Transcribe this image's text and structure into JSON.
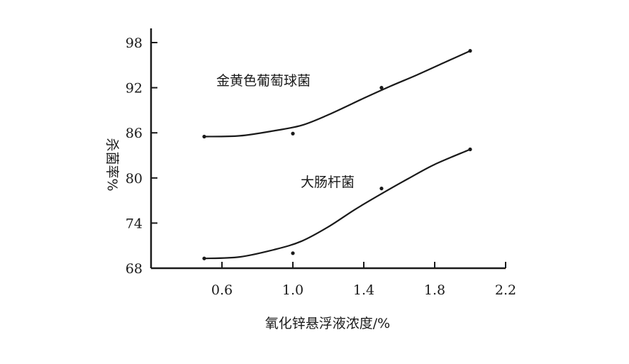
{
  "chart_data": {
    "type": "line",
    "xlabel": "氧化锌悬浮液浓度/%",
    "ylabel": "杀菌率%",
    "xlim": [
      0.2,
      2.2
    ],
    "ylim": [
      68,
      98
    ],
    "xticks": [
      "0.6",
      "1.0",
      "1.4",
      "1.8",
      "2.2"
    ],
    "yticks": [
      "68",
      "74",
      "80",
      "86",
      "92",
      "98"
    ],
    "grid": false,
    "series": [
      {
        "name": "金黄色葡萄球菌",
        "points_x": [
          0.5,
          1.0,
          1.5,
          2.0
        ],
        "points_y": [
          85.5,
          85.9,
          92.0,
          96.9
        ],
        "curve_x": [
          0.5,
          0.7,
          0.9,
          1.05,
          1.2,
          1.4,
          1.55,
          1.7,
          1.85,
          2.0
        ],
        "curve_y": [
          85.5,
          85.6,
          86.3,
          87.0,
          88.4,
          90.6,
          92.2,
          93.7,
          95.3,
          96.9
        ]
      },
      {
        "name": "大肠杆菌",
        "points_x": [
          0.5,
          1.0,
          1.5,
          2.0
        ],
        "points_y": [
          69.3,
          70.0,
          78.6,
          83.8
        ],
        "curve_x": [
          0.5,
          0.7,
          0.9,
          1.05,
          1.2,
          1.35,
          1.5,
          1.65,
          1.8,
          2.0
        ],
        "curve_y": [
          69.3,
          69.5,
          70.5,
          71.6,
          73.5,
          75.8,
          77.9,
          79.9,
          81.8,
          83.8
        ]
      }
    ]
  }
}
